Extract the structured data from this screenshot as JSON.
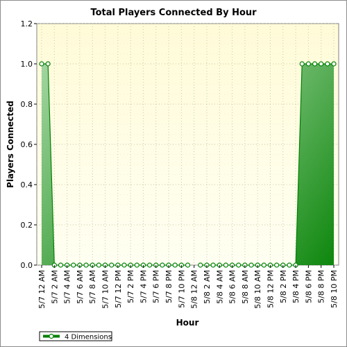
{
  "chart_data": {
    "type": "area",
    "title": "Total Players Connected By Hour",
    "xlabel": "Hour",
    "ylabel": "Players Connected",
    "ylim": [
      0,
      1.2
    ],
    "yticks": [
      "0.0",
      "0.2",
      "0.4",
      "0.6",
      "0.8",
      "1.0",
      "1.2"
    ],
    "grid": true,
    "legend_position": "bottom-left",
    "x": [
      "5/7 12 AM",
      "5/7 1 AM",
      "5/7 2 AM",
      "5/7 3 AM",
      "5/7 4 AM",
      "5/7 5 AM",
      "5/7 6 AM",
      "5/7 7 AM",
      "5/7 8 AM",
      "5/7 9 AM",
      "5/7 10 AM",
      "5/7 11 AM",
      "5/7 12 PM",
      "5/7 1 PM",
      "5/7 2 PM",
      "5/7 3 PM",
      "5/7 4 PM",
      "5/7 5 PM",
      "5/7 6 PM",
      "5/7 7 PM",
      "5/7 8 PM",
      "5/7 9 PM",
      "5/7 10 PM",
      "5/7 11 PM",
      "5/8 12 AM",
      "5/8 1 AM",
      "5/8 2 AM",
      "5/8 3 AM",
      "5/8 4 AM",
      "5/8 5 AM",
      "5/8 6 AM",
      "5/8 7 AM",
      "5/8 8 AM",
      "5/8 9 AM",
      "5/8 10 AM",
      "5/8 11 AM",
      "5/8 12 PM",
      "5/8 1 PM",
      "5/8 2 PM",
      "5/8 3 PM",
      "5/8 4 PM",
      "5/8 5 PM",
      "5/8 6 PM",
      "5/8 7 PM",
      "5/8 8 PM",
      "5/8 9 PM",
      "5/8 10 PM"
    ],
    "tick_labels": [
      "5/7 12 AM",
      "5/7 2 AM",
      "5/7 4 AM",
      "5/7 6 AM",
      "5/7 8 AM",
      "5/7 10 AM",
      "5/7 12 PM",
      "5/7 2 PM",
      "5/7 4 PM",
      "5/7 6 PM",
      "5/7 8 PM",
      "5/7 10 PM",
      "5/8 12 AM",
      "5/8 2 AM",
      "5/8 4 AM",
      "5/8 6 AM",
      "5/8 8 AM",
      "5/8 10 AM",
      "5/8 12 PM",
      "5/8 2 PM",
      "5/8 4 PM",
      "5/8 6 PM",
      "5/8 8 PM",
      "5/8 10 PM"
    ],
    "series": [
      {
        "name": "4 Dimensions",
        "color": "#008000",
        "values": [
          1,
          1,
          0,
          0,
          0,
          0,
          0,
          0,
          0,
          0,
          0,
          0,
          0,
          0,
          0,
          0,
          0,
          0,
          0,
          0,
          0,
          0,
          0,
          0,
          null,
          0,
          0,
          0,
          0,
          0,
          0,
          0,
          0,
          0,
          0,
          0,
          0,
          0,
          0,
          0,
          0,
          1,
          1,
          1,
          1,
          1,
          1
        ]
      }
    ]
  }
}
